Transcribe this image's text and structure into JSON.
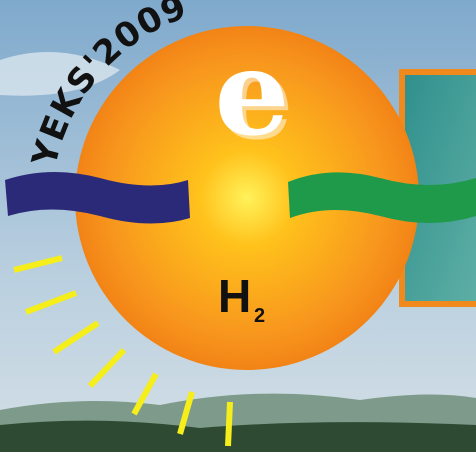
{
  "logo": {
    "arc_text": "YEKS'2009",
    "center_letter": "e",
    "formula": {
      "element": "H",
      "subscript": "2"
    }
  }
}
